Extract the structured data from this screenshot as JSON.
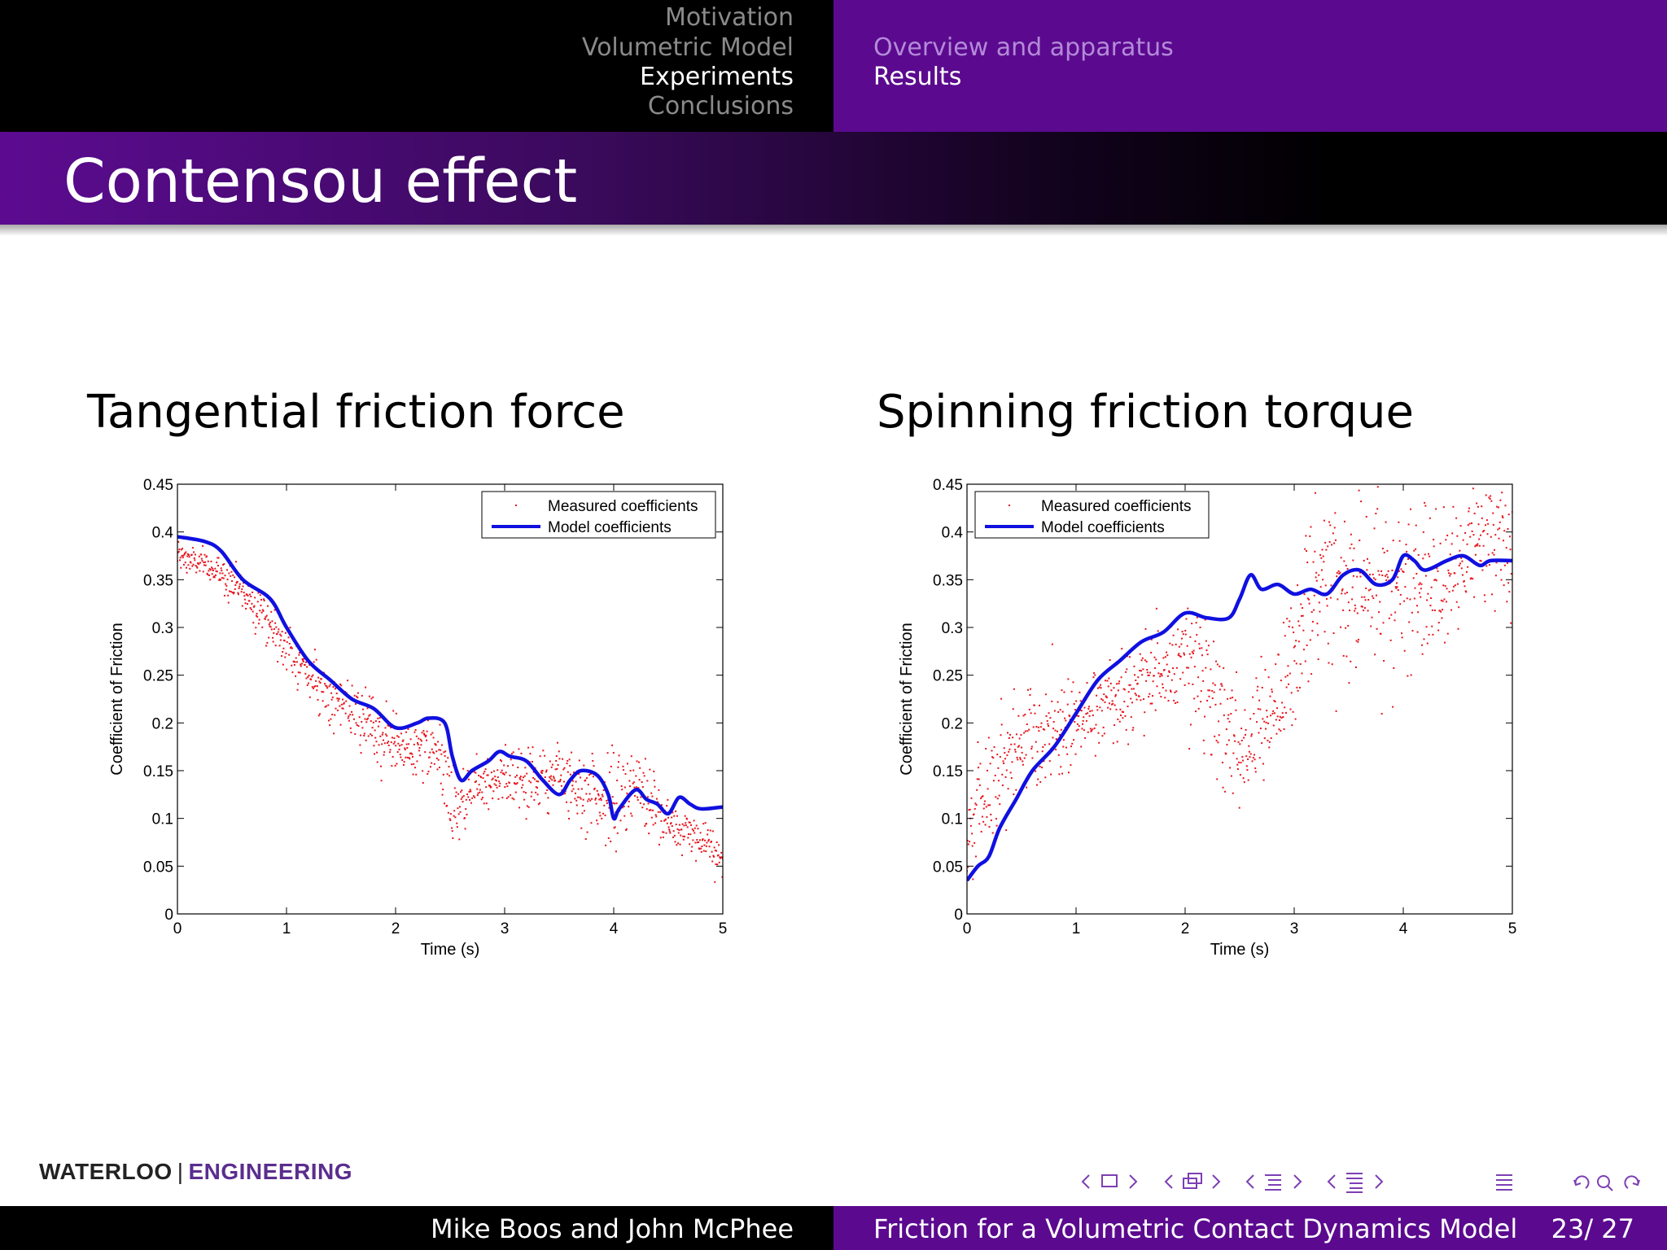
{
  "header": {
    "sections": [
      "Motivation",
      "Volumetric Model",
      "Experiments",
      "Conclusions"
    ],
    "active_section": 2,
    "subsections": [
      "Overview and apparatus",
      "Results"
    ],
    "active_subsection": 1
  },
  "slide_title": "Contensou effect",
  "figures": {
    "left_title": "Tangential friction force",
    "right_title": "Spinning friction torque"
  },
  "chart_data": [
    {
      "type": "scatter",
      "title": "Tangential friction force",
      "xlabel": "Time (s)",
      "ylabel": "Coefficient of Friction",
      "xlim": [
        0,
        5
      ],
      "ylim": [
        0,
        0.45
      ],
      "xticks": [
        "0",
        "1",
        "2",
        "3",
        "4",
        "5"
      ],
      "yticks": [
        "0",
        "0.05",
        "0.1",
        "0.15",
        "0.2",
        "0.25",
        "0.3",
        "0.35",
        "0.4",
        "0.45"
      ],
      "legend_position": "top-right",
      "series": [
        {
          "name": "Measured coefficients",
          "style": "points",
          "color": "#e8141c",
          "x": [
            0,
            0.25,
            0.5,
            0.75,
            1.0,
            1.25,
            1.5,
            1.75,
            2.0,
            2.25,
            2.4,
            2.55,
            2.75,
            3.0,
            3.25,
            3.5,
            3.75,
            4.0,
            4.25,
            4.5,
            4.75,
            5.0
          ],
          "y": [
            0.375,
            0.365,
            0.35,
            0.32,
            0.28,
            0.245,
            0.22,
            0.195,
            0.175,
            0.17,
            0.165,
            0.105,
            0.14,
            0.145,
            0.14,
            0.145,
            0.13,
            0.115,
            0.135,
            0.09,
            0.085,
            0.055
          ],
          "spread": [
            0.01,
            0.01,
            0.012,
            0.015,
            0.015,
            0.015,
            0.015,
            0.02,
            0.02,
            0.02,
            0.02,
            0.025,
            0.02,
            0.02,
            0.02,
            0.02,
            0.025,
            0.03,
            0.025,
            0.015,
            0.015,
            0.012
          ]
        },
        {
          "name": "Model coefficients",
          "style": "line",
          "color": "#1010e0",
          "x": [
            0,
            0.25,
            0.4,
            0.6,
            0.85,
            1.0,
            1.2,
            1.4,
            1.6,
            1.8,
            2.0,
            2.2,
            2.3,
            2.45,
            2.52,
            2.6,
            2.7,
            2.85,
            2.95,
            3.05,
            3.2,
            3.35,
            3.5,
            3.6,
            3.7,
            3.85,
            3.95,
            4.0,
            4.05,
            4.2,
            4.3,
            4.4,
            4.5,
            4.6,
            4.7,
            4.8,
            5.0
          ],
          "y": [
            0.395,
            0.39,
            0.38,
            0.35,
            0.33,
            0.3,
            0.265,
            0.245,
            0.225,
            0.215,
            0.195,
            0.2,
            0.205,
            0.2,
            0.165,
            0.14,
            0.15,
            0.16,
            0.17,
            0.165,
            0.16,
            0.14,
            0.125,
            0.14,
            0.15,
            0.145,
            0.125,
            0.1,
            0.11,
            0.13,
            0.12,
            0.115,
            0.105,
            0.122,
            0.115,
            0.11,
            0.112
          ]
        }
      ]
    },
    {
      "type": "scatter",
      "title": "Spinning friction torque",
      "xlabel": "Time (s)",
      "ylabel": "Coefficient of Friction",
      "xlim": [
        0,
        5
      ],
      "ylim": [
        0,
        0.45
      ],
      "xticks": [
        "0",
        "1",
        "2",
        "3",
        "4",
        "5"
      ],
      "yticks": [
        "0",
        "0.05",
        "0.1",
        "0.15",
        "0.2",
        "0.25",
        "0.3",
        "0.35",
        "0.4",
        "0.45"
      ],
      "legend_position": "top-left",
      "series": [
        {
          "name": "Measured coefficients",
          "style": "points",
          "color": "#e8141c",
          "x": [
            0,
            0.25,
            0.5,
            0.75,
            1.0,
            1.25,
            1.5,
            1.75,
            2.0,
            2.2,
            2.35,
            2.5,
            2.7,
            2.9,
            3.0,
            3.15,
            3.3,
            3.5,
            3.7,
            3.9,
            4.1,
            4.3,
            4.5,
            4.6
          ],
          "y": [
            0.08,
            0.15,
            0.18,
            0.19,
            0.2,
            0.215,
            0.235,
            0.25,
            0.27,
            0.24,
            0.2,
            0.17,
            0.2,
            0.23,
            0.26,
            0.34,
            0.37,
            0.32,
            0.36,
            0.34,
            0.35,
            0.33,
            0.35,
            0.39
          ],
          "spread": [
            0.035,
            0.04,
            0.035,
            0.03,
            0.03,
            0.03,
            0.03,
            0.03,
            0.035,
            0.05,
            0.04,
            0.04,
            0.04,
            0.04,
            0.04,
            0.06,
            0.06,
            0.06,
            0.05,
            0.05,
            0.05,
            0.05,
            0.04,
            0.04
          ]
        },
        {
          "name": "Model coefficients",
          "style": "line",
          "color": "#1010e0",
          "x": [
            0,
            0.1,
            0.2,
            0.3,
            0.45,
            0.6,
            0.8,
            1.0,
            1.2,
            1.4,
            1.6,
            1.8,
            2.0,
            2.2,
            2.4,
            2.5,
            2.6,
            2.7,
            2.85,
            3.0,
            3.15,
            3.3,
            3.45,
            3.6,
            3.75,
            3.9,
            4.0,
            4.1,
            4.2,
            4.4,
            4.55,
            4.7,
            4.8,
            5.0
          ],
          "y": [
            0.035,
            0.05,
            0.06,
            0.09,
            0.12,
            0.15,
            0.175,
            0.21,
            0.245,
            0.265,
            0.285,
            0.295,
            0.315,
            0.31,
            0.31,
            0.33,
            0.355,
            0.34,
            0.345,
            0.335,
            0.34,
            0.335,
            0.355,
            0.36,
            0.345,
            0.35,
            0.375,
            0.37,
            0.36,
            0.37,
            0.375,
            0.365,
            0.37,
            0.37
          ]
        }
      ]
    }
  ],
  "logo": {
    "word1": "WATERLOO",
    "separator": "|",
    "word2": "ENGINEERING"
  },
  "navigation": {
    "icons": [
      "arrow-left-icon",
      "frame-icon",
      "arrow-right-icon",
      "subsection-icon",
      "section-icon",
      "toc-icon",
      "back-forward-search-icon"
    ],
    "color": "#7d3fb4"
  },
  "footer": {
    "authors": "Mike Boos and John McPhee",
    "talk_title": "Friction for a Volumetric Contact Dynamics Model",
    "page": "23/ 27"
  }
}
